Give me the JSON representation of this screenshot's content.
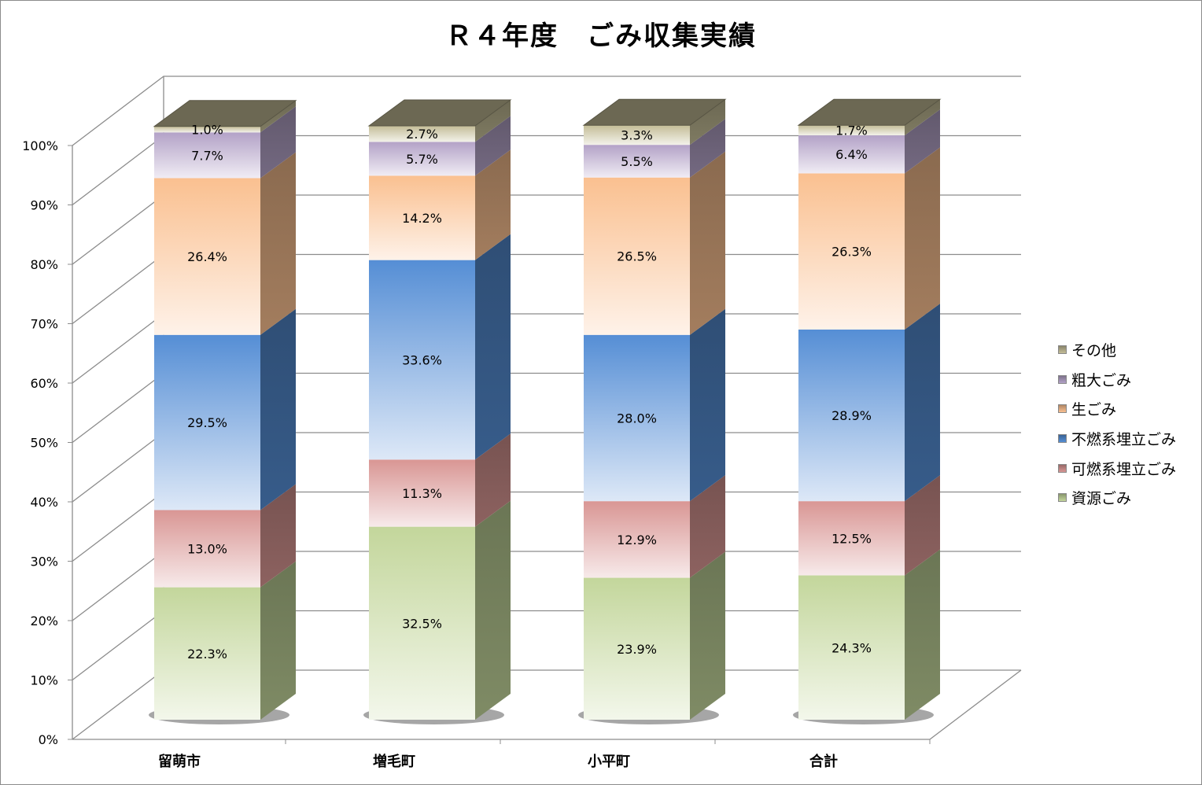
{
  "chart_data": {
    "type": "bar",
    "stacked": true,
    "percent_stacked": true,
    "three_d": true,
    "title": "Ｒ４年度　ごみ収集実績",
    "xlabel": "",
    "ylabel": "",
    "ylim": [
      0,
      100
    ],
    "yticks": [
      "0%",
      "10%",
      "20%",
      "30%",
      "40%",
      "50%",
      "60%",
      "70%",
      "80%",
      "90%",
      "100%"
    ],
    "grid": true,
    "legend_position": "right",
    "categories": [
      "留萌市",
      "増毛町",
      "小平町",
      "合計"
    ],
    "series": [
      {
        "name": "資源ごみ",
        "color": "#c3d69b",
        "values": [
          22.3,
          32.5,
          23.9,
          24.3
        ]
      },
      {
        "name": "可燃系埋立ごみ",
        "color": "#d99694",
        "values": [
          13.0,
          11.3,
          12.9,
          12.5
        ]
      },
      {
        "name": "不燃系埋立ごみ",
        "color": "#558ed5",
        "values": [
          29.5,
          33.6,
          28.0,
          28.9
        ]
      },
      {
        "name": "生ごみ",
        "color": "#fac090",
        "values": [
          26.4,
          14.2,
          26.5,
          26.3
        ]
      },
      {
        "name": "粗大ごみ",
        "color": "#b3a2c7",
        "values": [
          7.7,
          5.7,
          5.5,
          6.4
        ]
      },
      {
        "name": "その他",
        "color": "#c4bd97",
        "values": [
          1.0,
          2.7,
          3.3,
          1.7
        ]
      }
    ]
  }
}
